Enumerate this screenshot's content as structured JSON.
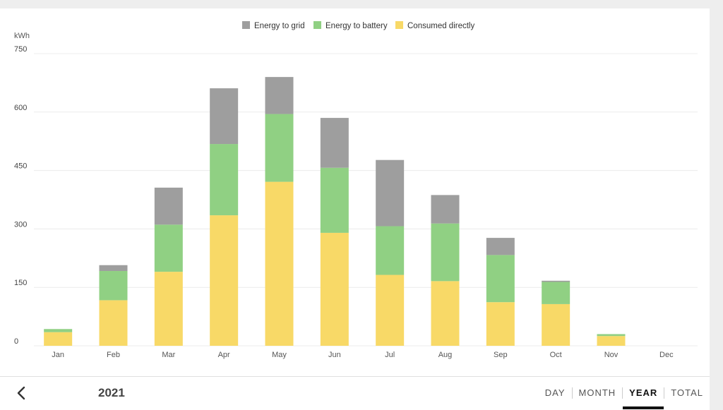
{
  "colors": {
    "grid_series": "#9e9e9e",
    "battery_series": "#90d083",
    "consumed_series": "#f8d967"
  },
  "chart_data": {
    "type": "bar",
    "stacked": true,
    "unit_label": "kWh",
    "categories": [
      "Jan",
      "Feb",
      "Mar",
      "Apr",
      "May",
      "Jun",
      "Jul",
      "Aug",
      "Sep",
      "Oct",
      "Nov",
      "Dec"
    ],
    "series": [
      {
        "name": "Consumed directly",
        "values": [
          35,
          117,
          190,
          335,
          421,
          290,
          182,
          166,
          112,
          107,
          25,
          0
        ]
      },
      {
        "name": "Energy to battery",
        "values": [
          8,
          75,
          121,
          183,
          174,
          167,
          125,
          148,
          121,
          57,
          5,
          0
        ]
      },
      {
        "name": "Energy to grid",
        "values": [
          0,
          15,
          95,
          143,
          95,
          128,
          170,
          73,
          44,
          3,
          0,
          0
        ]
      }
    ],
    "ylim": [
      0,
      750
    ],
    "yticks": [
      "0",
      "150",
      "300",
      "450",
      "600",
      "750"
    ],
    "grid": true,
    "legend_position": "top-center"
  },
  "legend": [
    {
      "label": "Energy to grid",
      "series": "Energy to grid"
    },
    {
      "label": "Energy to battery",
      "series": "Energy to battery"
    },
    {
      "label": "Consumed directly",
      "series": "Consumed directly"
    }
  ],
  "footer": {
    "year": "2021",
    "tabs": [
      "DAY",
      "MONTH",
      "YEAR",
      "TOTAL"
    ],
    "active_tab": "YEAR"
  }
}
